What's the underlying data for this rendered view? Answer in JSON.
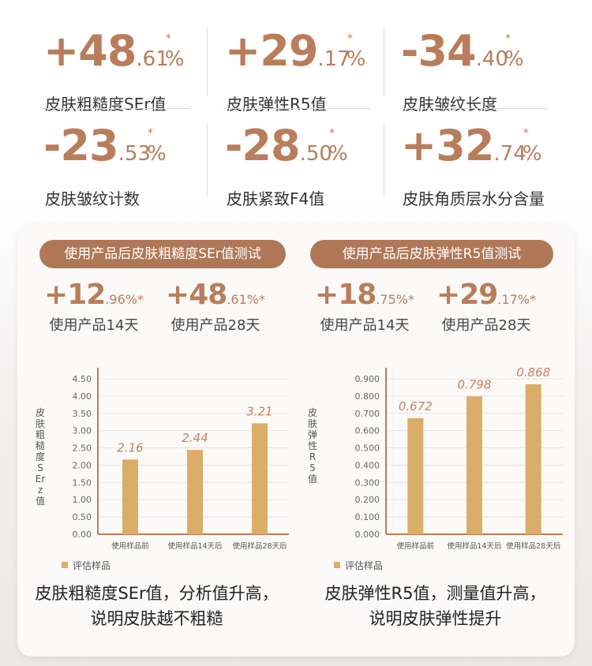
{
  "stats": [
    {
      "sign": "+",
      "int": "48",
      "dec": ".61",
      "pct": "%",
      "star": "*",
      "label": "皮肤粗糙度SEr值"
    },
    {
      "sign": "+",
      "int": "29",
      "dec": ".17",
      "pct": "%",
      "star": "*",
      "label": "皮肤弹性R5值"
    },
    {
      "sign": "-",
      "int": "34",
      "dec": ".40",
      "pct": "%",
      "star": "*",
      "label": "皮肤皱纹长度"
    },
    {
      "sign": "-",
      "int": "23",
      "dec": ".53",
      "pct": "%",
      "star": "*",
      "label": "皮肤皱纹计数"
    },
    {
      "sign": "-",
      "int": "28",
      "dec": ".50",
      "pct": "%",
      "star": "*",
      "label": "皮肤紧致F4值"
    },
    {
      "sign": "+",
      "int": "32",
      "dec": ".74",
      "pct": "%",
      "star": "*",
      "label": "皮肤角质层水分含量"
    }
  ],
  "left": {
    "pill": "使用产品后皮肤粗糙度SEr值测试",
    "mini": [
      {
        "big": "+12",
        "small": ".96%*",
        "label": "使用产品14天"
      },
      {
        "big": "+48",
        "small": ".61%*",
        "label": "使用产品28天"
      }
    ],
    "conclusion": [
      "皮肤粗糙度SEr值，分析值升高，",
      "说明皮肤越不粗糙"
    ]
  },
  "right": {
    "pill": "使用产品后皮肤弹性R5值测试",
    "mini": [
      {
        "big": "+18",
        "small": ".75%*",
        "label": "使用产品14天"
      },
      {
        "big": "+29",
        "small": ".17%*",
        "label": "使用产品28天"
      }
    ],
    "conclusion": [
      "皮肤弹性R5值，测量值升高，",
      "说明皮肤弹性提升"
    ]
  },
  "colors": {
    "accent": "#b97d5b",
    "pill": "#b07756",
    "bar": "#dcad68",
    "axis": "#c07a55",
    "label": "#c97f60"
  },
  "chart_data": [
    {
      "type": "bar",
      "categories": [
        "使用样品前",
        "使用样品14天后",
        "使用样品28天后"
      ],
      "series": [
        {
          "name": "评估样品",
          "values": [
            2.16,
            2.44,
            3.21
          ]
        }
      ],
      "data_labels": [
        "2.16",
        "2.44",
        "3.21"
      ],
      "ylabel": "皮肤粗糙度SEr z值",
      "yticks": [
        "0.00",
        "0.50",
        "1.00",
        "1.50",
        "2.00",
        "2.50",
        "3.00",
        "3.50",
        "4.00",
        "4.50"
      ],
      "ylim": [
        0,
        4.5
      ],
      "grid": true,
      "legend": "bottom-left"
    },
    {
      "type": "bar",
      "categories": [
        "使用样品前",
        "使用样品14天后",
        "使用样品28天后"
      ],
      "series": [
        {
          "name": "评估样品",
          "values": [
            0.672,
            0.798,
            0.868
          ]
        }
      ],
      "data_labels": [
        "0.672",
        "0.798",
        "0.868"
      ],
      "ylabel": "皮肤弹性R5值",
      "yticks": [
        "0.000",
        "0.100",
        "0.200",
        "0.300",
        "0.400",
        "0.500",
        "0.600",
        "0.700",
        "0.800",
        "0.900"
      ],
      "ylim": [
        0,
        0.9
      ],
      "grid": true,
      "legend": "bottom-left"
    }
  ]
}
